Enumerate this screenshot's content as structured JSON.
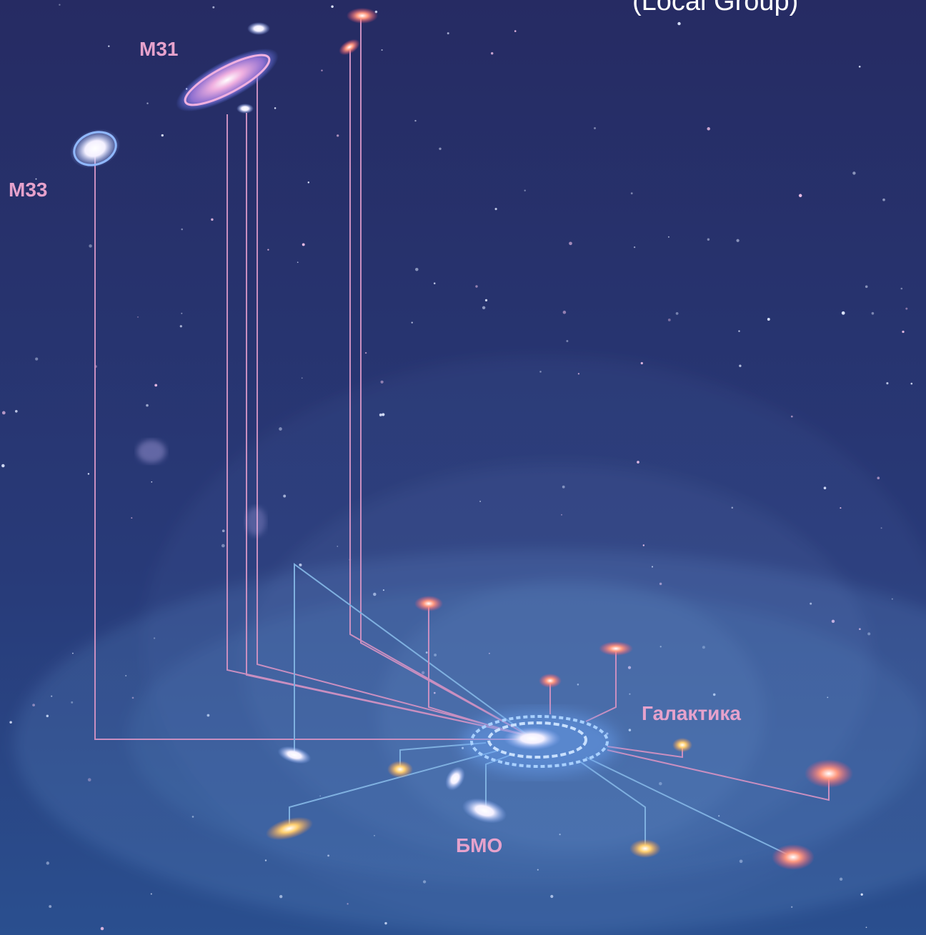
{
  "title": "(Local Group)",
  "labels": {
    "m31": "M31",
    "m33": "M33",
    "galaxy": "Галактика",
    "lmc": "БМО"
  }
}
